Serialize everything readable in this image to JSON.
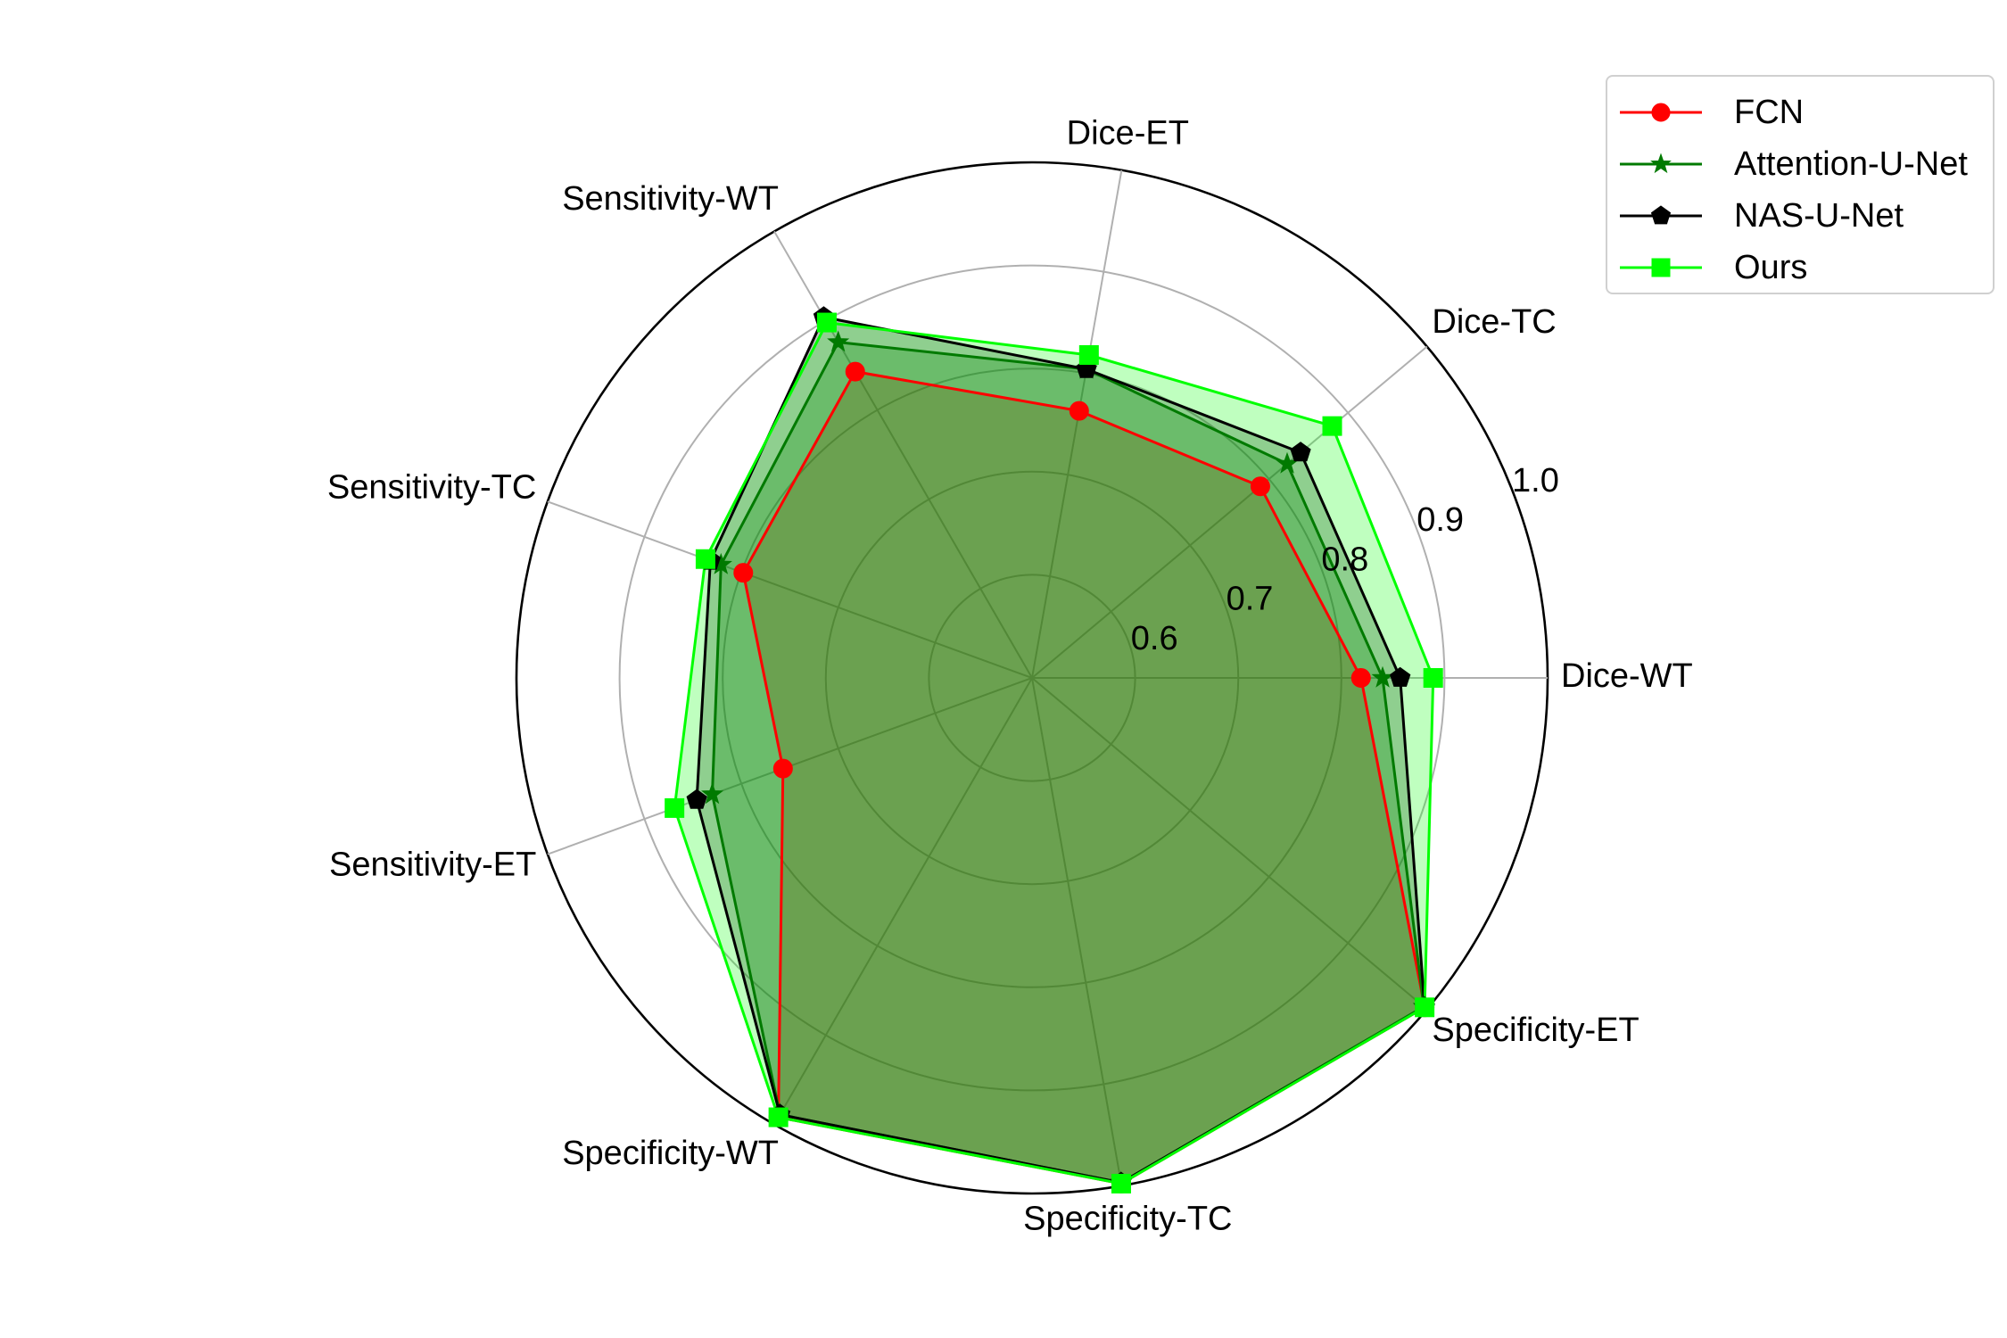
{
  "chart_data": {
    "type": "radar",
    "axes": [
      "Dice-WT",
      "Dice-TC",
      "Dice-ET",
      "Sensitivity-WT",
      "Sensitivity-TC",
      "Sensitivity-ET",
      "Specificity-WT",
      "Specificity-TC",
      "Specificity-ET"
    ],
    "rmin": 0.5,
    "rmax": 1.0,
    "rticks": [
      0.6,
      0.7,
      0.8,
      0.9,
      1.0
    ],
    "rtick_labels": [
      "0.6",
      "0.7",
      "0.8",
      "0.9",
      "1.0"
    ],
    "grid": true,
    "legend_position": "top-right",
    "series": [
      {
        "name": "FCN",
        "color": "#ff0000",
        "marker": "circle",
        "values": [
          0.819,
          0.789,
          0.763,
          0.843,
          0.798,
          0.757,
          0.992,
          0.998,
          0.997
        ]
      },
      {
        "name": "Attention-U-Net",
        "color": "#007a00",
        "marker": "star",
        "values": [
          0.84,
          0.823,
          0.804,
          0.876,
          0.821,
          0.83,
          0.989,
          0.997,
          0.996
        ]
      },
      {
        "name": "NAS-U-Net",
        "color": "#000000",
        "marker": "pentagon",
        "values": [
          0.857,
          0.84,
          0.804,
          0.904,
          0.832,
          0.846,
          0.989,
          0.997,
          0.997
        ]
      },
      {
        "name": "Ours",
        "color": "#00ff00",
        "marker": "square",
        "values": [
          0.889,
          0.88,
          0.818,
          0.898,
          0.837,
          0.869,
          0.992,
          0.998,
          0.997
        ]
      }
    ]
  }
}
